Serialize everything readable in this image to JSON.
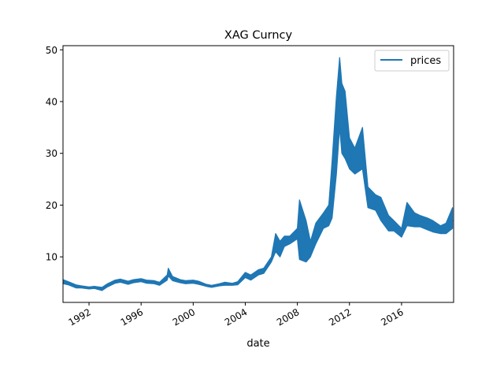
{
  "chart_data": {
    "type": "line",
    "title": "XAG Curncy",
    "xlabel": "date",
    "ylabel": "",
    "xlim": [
      "1990-01-01",
      "2019-12-31"
    ],
    "ylim": [
      1.2,
      50.8
    ],
    "x_ticks": [
      "1992-01-01",
      "1996-01-01",
      "2000-01-01",
      "2004-01-01",
      "2008-01-01",
      "2012-01-01",
      "2016-01-01"
    ],
    "x_tick_labels": [
      "1992",
      "1996",
      "2000",
      "2004",
      "2008",
      "2012",
      "2016"
    ],
    "y_ticks": [
      10,
      20,
      30,
      40,
      50
    ],
    "y_tick_labels": [
      "10",
      "20",
      "30",
      "40",
      "50"
    ],
    "grid": false,
    "legend_position": "top-right",
    "series": [
      {
        "name": "prices",
        "color": "#1f77b4",
        "x": [
          "1990-01-01",
          "1990-06-01",
          "1991-01-01",
          "1991-06-01",
          "1992-01-01",
          "1992-06-01",
          "1993-01-01",
          "1993-06-01",
          "1994-01-01",
          "1994-06-01",
          "1995-01-01",
          "1995-06-01",
          "1996-01-01",
          "1996-06-01",
          "1997-01-01",
          "1997-06-01",
          "1998-01-01",
          "1998-02-01",
          "1998-06-01",
          "1999-01-01",
          "1999-06-01",
          "2000-01-01",
          "2000-06-01",
          "2001-01-01",
          "2001-06-01",
          "2002-01-01",
          "2002-06-01",
          "2003-01-01",
          "2003-06-01",
          "2004-01-01",
          "2004-06-01",
          "2005-01-01",
          "2005-06-01",
          "2006-01-01",
          "2006-05-01",
          "2006-09-01",
          "2007-01-01",
          "2007-06-01",
          "2008-01-01",
          "2008-03-01",
          "2008-09-01",
          "2009-01-01",
          "2009-06-01",
          "2010-01-01",
          "2010-06-01",
          "2010-09-01",
          "2011-01-01",
          "2011-04-01",
          "2011-06-01",
          "2011-09-01",
          "2012-01-01",
          "2012-06-01",
          "2013-01-01",
          "2013-06-01",
          "2014-01-01",
          "2014-06-01",
          "2015-01-01",
          "2015-06-01",
          "2016-01-01",
          "2016-06-01",
          "2017-01-01",
          "2017-06-01",
          "2018-01-01",
          "2018-06-01",
          "2019-01-01",
          "2019-06-01",
          "2019-12-01"
        ],
        "y": [
          5.2,
          4.9,
          4.3,
          4.2,
          4.0,
          4.1,
          3.8,
          4.5,
          5.2,
          5.4,
          5.0,
          5.3,
          5.5,
          5.2,
          5.1,
          4.8,
          6.0,
          7.2,
          5.8,
          5.3,
          5.1,
          5.2,
          5.0,
          4.5,
          4.3,
          4.6,
          4.8,
          4.7,
          4.9,
          6.5,
          6.0,
          7.0,
          7.3,
          9.5,
          13.5,
          11.5,
          13.0,
          13.3,
          14.5,
          19.0,
          12.5,
          11.5,
          14.5,
          17.0,
          18.0,
          21.0,
          29.0,
          44.0,
          37.0,
          36.0,
          30.0,
          28.0,
          31.0,
          21.0,
          20.5,
          19.5,
          16.5,
          16.0,
          14.5,
          18.0,
          17.0,
          17.0,
          16.5,
          16.0,
          15.5,
          15.5,
          17.0
        ],
        "band_low": [
          4.8,
          4.6,
          4.0,
          4.0,
          3.8,
          3.9,
          3.5,
          4.2,
          4.9,
          5.1,
          4.7,
          5.0,
          5.2,
          4.9,
          4.8,
          4.5,
          5.5,
          6.3,
          5.4,
          5.0,
          4.8,
          4.9,
          4.7,
          4.3,
          4.1,
          4.4,
          4.5,
          4.5,
          4.6,
          6.0,
          5.5,
          6.5,
          6.8,
          9.0,
          11.0,
          10.0,
          12.0,
          12.5,
          13.5,
          9.5,
          9.0,
          10.0,
          12.5,
          15.5,
          16.0,
          17.5,
          26.0,
          35.0,
          30.0,
          29.0,
          27.0,
          26.0,
          27.0,
          19.5,
          19.0,
          17.0,
          15.0,
          15.0,
          13.8,
          16.0,
          15.8,
          15.8,
          15.2,
          14.8,
          14.5,
          14.5,
          15.5
        ],
        "band_high": [
          5.6,
          5.2,
          4.6,
          4.4,
          4.2,
          4.3,
          4.1,
          4.8,
          5.5,
          5.7,
          5.3,
          5.6,
          5.8,
          5.5,
          5.4,
          5.1,
          6.5,
          7.8,
          6.2,
          5.6,
          5.4,
          5.5,
          5.3,
          4.7,
          4.5,
          4.8,
          5.1,
          4.9,
          5.2,
          7.0,
          6.5,
          7.5,
          7.8,
          10.0,
          14.5,
          13.0,
          14.0,
          14.0,
          15.5,
          21.0,
          17.0,
          13.0,
          16.5,
          18.5,
          20.0,
          28.5,
          41.0,
          48.5,
          43.5,
          42.0,
          33.0,
          31.0,
          35.0,
          23.5,
          22.0,
          21.5,
          18.0,
          17.0,
          15.5,
          20.5,
          18.5,
          18.0,
          17.5,
          17.0,
          16.0,
          16.5,
          19.5
        ]
      }
    ]
  }
}
